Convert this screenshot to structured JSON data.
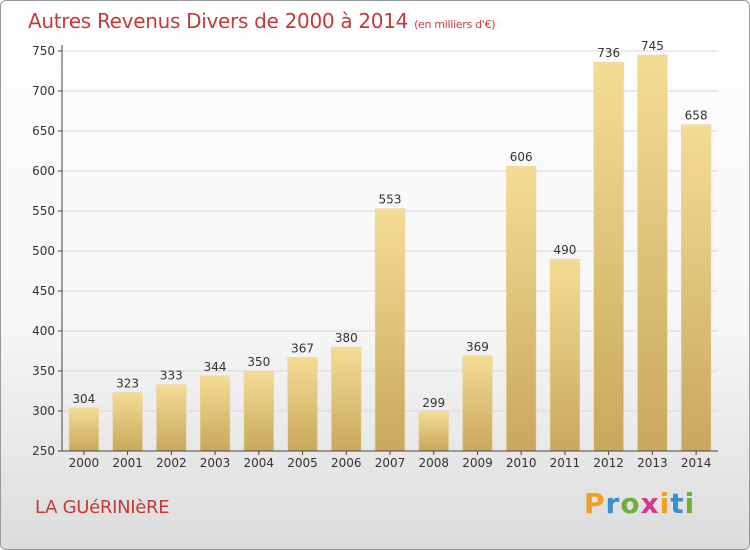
{
  "title": "Autres Revenus Divers de 2000 à 2014",
  "title_unit": "(en milliers d'€)",
  "place": "LA GUéRINIèRE",
  "brand": {
    "letters": [
      "P",
      "r",
      "o",
      "x",
      "i",
      "t",
      "i"
    ],
    "colors": [
      "#f0a020",
      "#3a8fd0",
      "#6ab03a",
      "#d03a8a",
      "#f0a020",
      "#3a8fd0",
      "#6ab03a"
    ]
  },
  "colors": {
    "bar_light": "#f5dc95",
    "bar_dark": "#c8a85c",
    "grid": "#d8d8d8",
    "axis": "#444444",
    "title": "#c23a3a"
  },
  "chart_data": {
    "type": "bar",
    "categories": [
      "2000",
      "2001",
      "2002",
      "2003",
      "2004",
      "2005",
      "2006",
      "2007",
      "2008",
      "2009",
      "2010",
      "2011",
      "2012",
      "2013",
      "2014"
    ],
    "values": [
      304,
      323,
      333,
      344,
      350,
      367,
      380,
      553,
      299,
      369,
      606,
      490,
      736,
      745,
      658
    ],
    "ylim": [
      250,
      750
    ],
    "yticks": [
      250,
      300,
      350,
      400,
      450,
      500,
      550,
      600,
      650,
      700,
      750
    ],
    "grid": true
  }
}
